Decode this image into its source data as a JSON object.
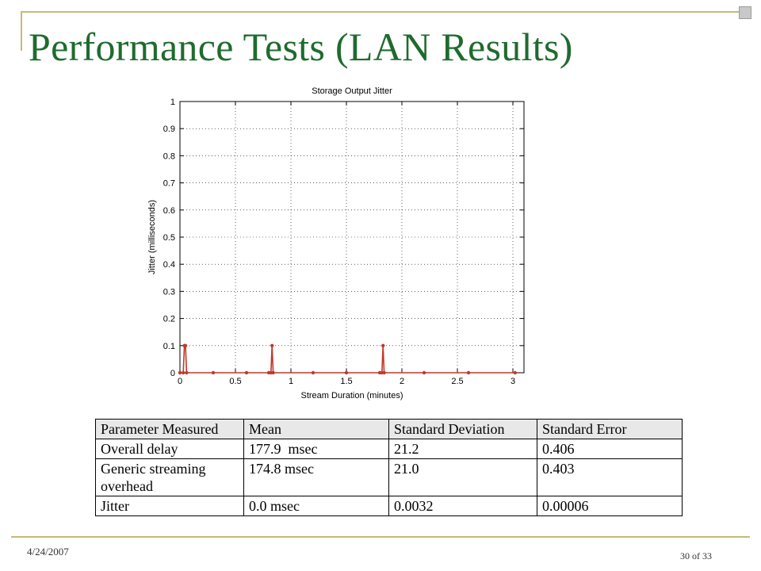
{
  "slide": {
    "title": "Performance Tests (LAN Results)",
    "date": "4/24/2007",
    "page_current": "30",
    "page_of": "of",
    "page_total": "33"
  },
  "colors": {
    "title": "#1f6b2e",
    "accent": "#c8b974",
    "series": "#c0392b"
  },
  "chart_data": {
    "type": "line",
    "title": "Storage Output Jitter",
    "xlabel": "Stream Duration (minutes)",
    "ylabel": "Jitter (milliseconds)",
    "xlim": [
      0,
      3.1
    ],
    "ylim": [
      0,
      1
    ],
    "xticks": [
      0,
      0.5,
      1,
      1.5,
      2,
      2.5,
      3
    ],
    "xticklabels": [
      "0",
      "0.5",
      "1",
      "1.5",
      "2",
      "2.5",
      "3"
    ],
    "yticks": [
      0,
      0.1,
      0.2,
      0.3,
      0.4,
      0.5,
      0.6,
      0.7,
      0.8,
      0.9,
      1
    ],
    "yticklabels": [
      "0",
      "0.1",
      "0.2",
      "0.3",
      "0.4",
      "0.5",
      "0.6",
      "0.7",
      "0.8",
      "0.9",
      "1"
    ],
    "grid": true,
    "x": [
      0.0,
      0.03,
      0.04,
      0.05,
      0.06,
      0.3,
      0.6,
      0.8,
      0.82,
      0.83,
      0.84,
      1.2,
      1.5,
      1.8,
      1.82,
      1.83,
      1.84,
      2.2,
      2.6,
      3.02
    ],
    "y": [
      0,
      0,
      0.1,
      0.1,
      0,
      0,
      0,
      0,
      0,
      0.1,
      0,
      0,
      0,
      0,
      0,
      0.1,
      0,
      0,
      0,
      0
    ]
  },
  "table": {
    "headers": [
      "Parameter Measured",
      "Mean",
      "Standard Deviation",
      "Standard Error"
    ],
    "rows": [
      [
        "Overall delay",
        "177.9  msec",
        "21.2",
        "0.406"
      ],
      [
        "Generic streaming overhead",
        "174.8 msec",
        "21.0",
        "0.403"
      ],
      [
        "Jitter",
        "0.0 msec",
        "0.0032",
        "0.00006"
      ]
    ]
  }
}
